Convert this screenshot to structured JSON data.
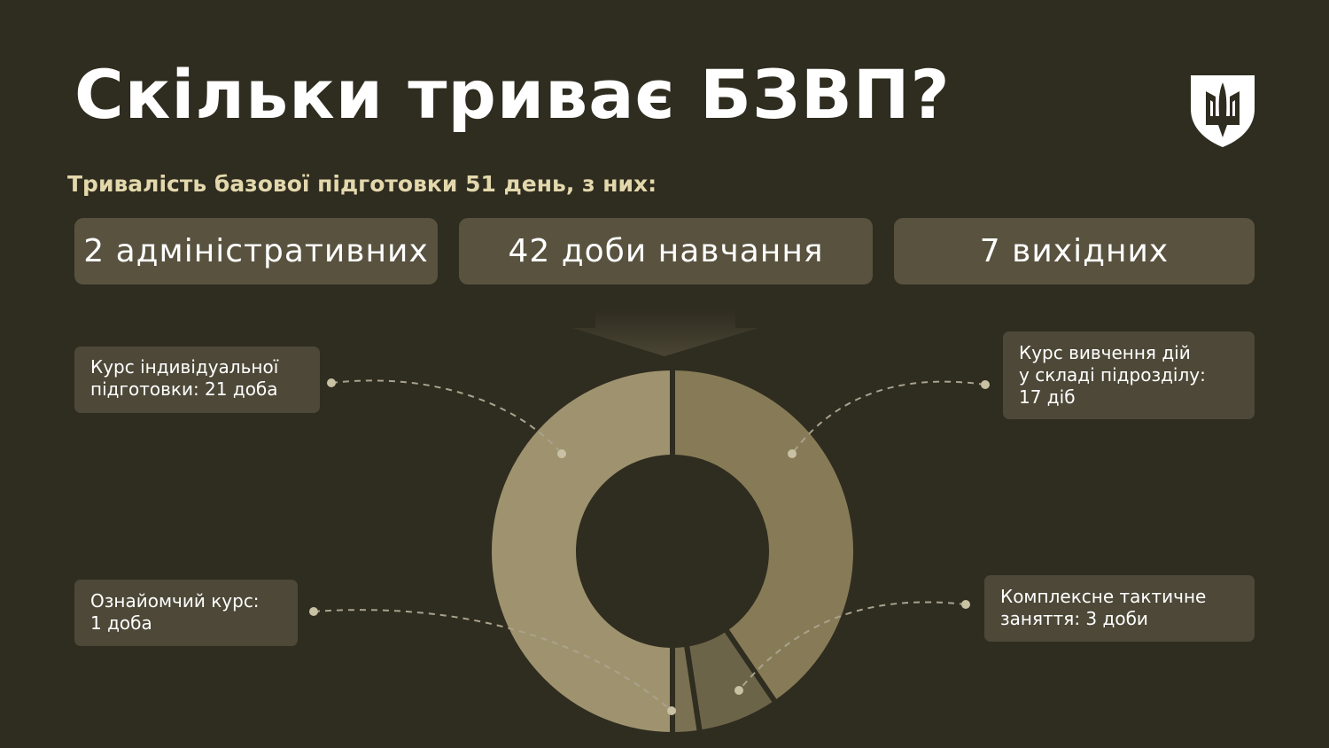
{
  "title": "Скільки триває БЗВП?",
  "subtitle": "Тривалість базової підготовки 51 день, з них:",
  "summary": [
    {
      "label": "2 адміністративних"
    },
    {
      "label": "42 доби навчання"
    },
    {
      "label": "7 вихідних"
    }
  ],
  "logo": {
    "icon": "trident-shield-icon"
  },
  "chart_data": {
    "type": "pie",
    "variant": "donut",
    "total": 42,
    "slices": [
      {
        "label": "Курс вивчення дій у складі підрозділу: 17 діб",
        "value": 17,
        "color": "#877b57"
      },
      {
        "label": "Комплексне тактичне заняття: 3 доби",
        "value": 3,
        "color": "#6c6448"
      },
      {
        "label": "Ознайомчий курс: 1 доба",
        "value": 1,
        "color": "#7a7052"
      },
      {
        "label": "Курс індивідуальної підготовки: 21 доба",
        "value": 21,
        "color": "#9f936f"
      }
    ]
  },
  "colors": {
    "background": "#2f2c20",
    "box": "#58523f",
    "subtitle": "#e3d8ac"
  }
}
